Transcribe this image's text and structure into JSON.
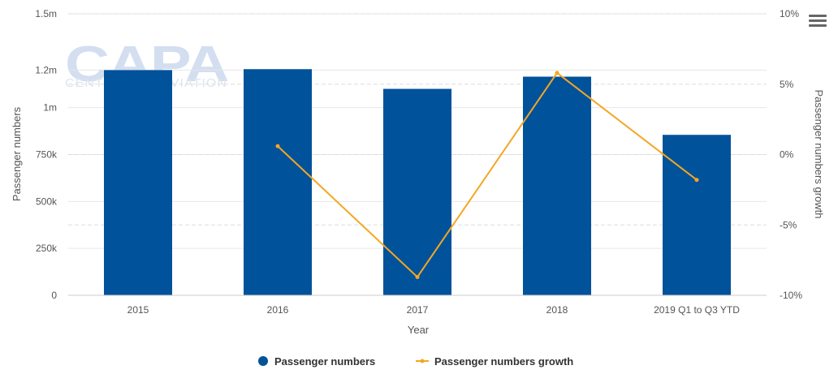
{
  "watermark": {
    "brand": "CAPA",
    "tagline": "CENTRE FOR AVIATION"
  },
  "menu": {
    "icon": "hamburger-menu-icon"
  },
  "chart_data": {
    "type": "bar",
    "categories": [
      "2015",
      "2016",
      "2017",
      "2018",
      "2019 Q1 to Q3 YTD"
    ],
    "xlabel": "Year",
    "ylabel": "Passenger numbers",
    "y2label": "Passenger numbers growth",
    "ylim": [
      0,
      1500000
    ],
    "y2lim": [
      -10,
      10
    ],
    "y_ticks": [
      0,
      250000,
      500000,
      750000,
      1000000,
      1200000,
      1500000
    ],
    "y_tick_labels": [
      "0",
      "250k",
      "500k",
      "750k",
      "1m",
      "1.2m",
      "1.5m"
    ],
    "y2_ticks": [
      -10,
      -5,
      0,
      5,
      10
    ],
    "y2_tick_labels": [
      "-10%",
      "-5%",
      "0%",
      "5%",
      "10%"
    ],
    "series": [
      {
        "name": "Passenger numbers",
        "type": "bar",
        "axis": "left",
        "color": "#00529b",
        "values": [
          1200000,
          1205000,
          1100000,
          1165000,
          855000
        ]
      },
      {
        "name": "Passenger numbers growth",
        "type": "line",
        "axis": "right",
        "color": "#f5a623",
        "values": [
          null,
          0.6,
          -8.7,
          5.8,
          -1.8
        ]
      }
    ],
    "grid": true,
    "legend": "bottom-center"
  }
}
